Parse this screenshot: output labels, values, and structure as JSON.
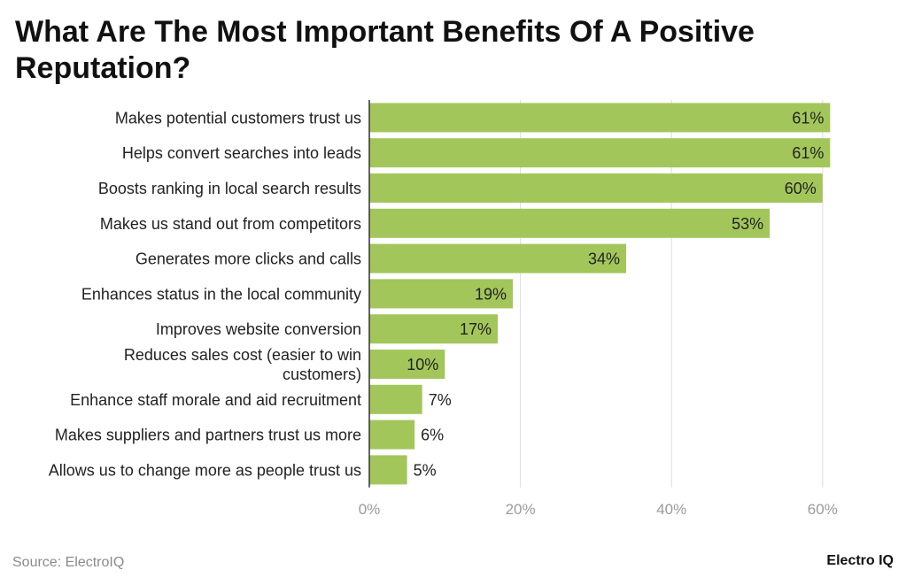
{
  "chart_data": {
    "type": "bar",
    "orientation": "horizontal",
    "title": "What Are The Most Important Benefits Of A Positive Reputation?",
    "categories": [
      [
        "Makes potential customers trust us"
      ],
      [
        "Helps convert searches into leads"
      ],
      [
        "Boosts ranking in local search results"
      ],
      [
        "Makes us stand out from competitors"
      ],
      [
        "Generates more clicks and calls"
      ],
      [
        "Enhances status in the local community"
      ],
      [
        "Improves website conversion"
      ],
      [
        "Reduces sales cost (easier to win",
        "customers)"
      ],
      [
        "Enhance staff morale and aid recruitment"
      ],
      [
        "Makes suppliers and partners trust us more"
      ],
      [
        "Allows us to change more as people trust us"
      ]
    ],
    "values": [
      61,
      61,
      60,
      53,
      34,
      19,
      17,
      10,
      7,
      6,
      5
    ],
    "value_labels": [
      "61%",
      "61%",
      "60%",
      "53%",
      "34%",
      "19%",
      "17%",
      "10%",
      "7%",
      "6%",
      "5%"
    ],
    "xlim": [
      0,
      66
    ],
    "xticks": [
      0,
      20,
      40,
      60
    ],
    "xtick_labels": [
      "0%",
      "20%",
      "40%",
      "60%"
    ],
    "xlabel": "",
    "ylabel": "",
    "grid": true,
    "bar_color": "#a3c65b"
  },
  "footer": {
    "source": "Source: ElectroIQ",
    "brand": "Electro IQ"
  }
}
